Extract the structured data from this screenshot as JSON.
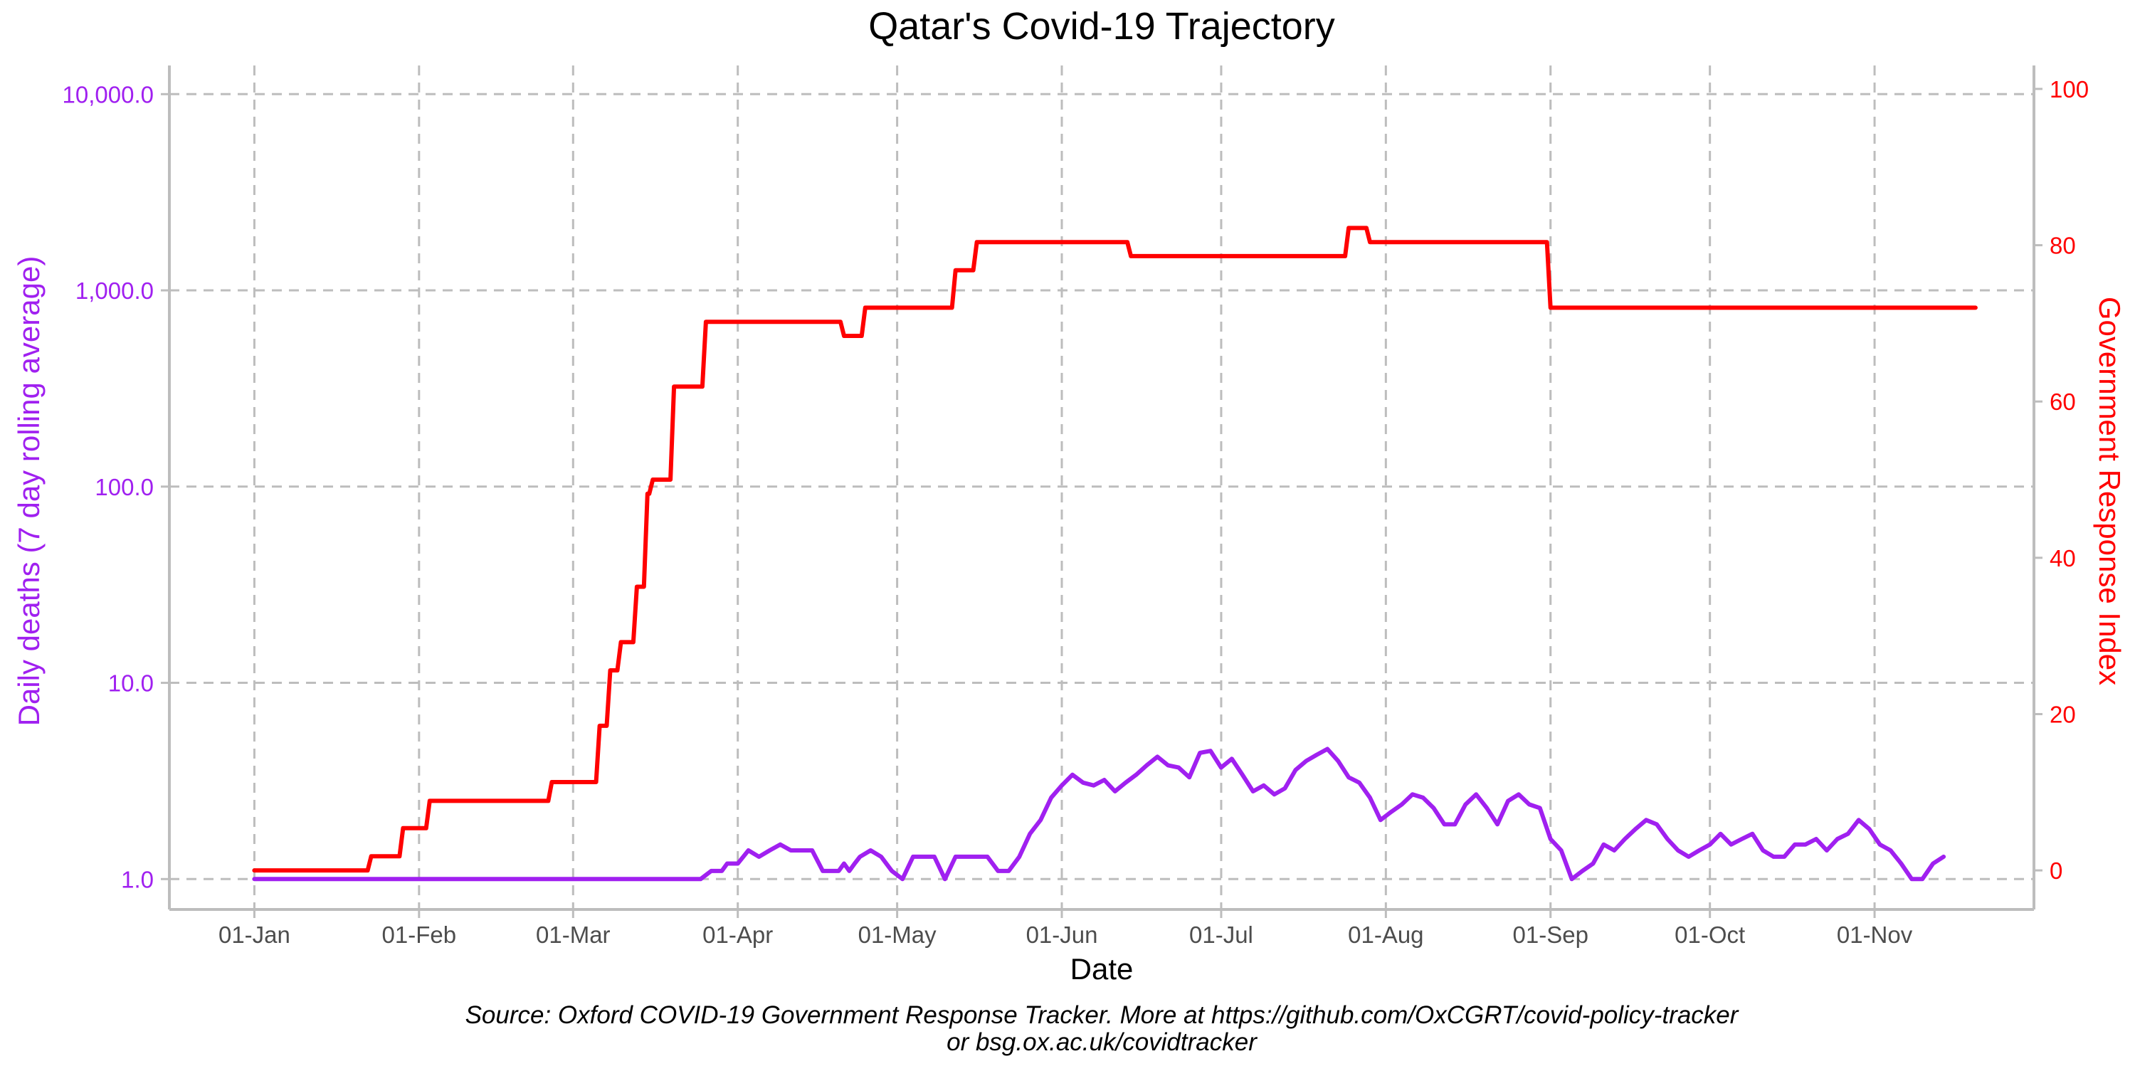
{
  "chart_data": {
    "type": "line",
    "title": "Qatar's Covid-19 Trajectory",
    "xlabel": "Date",
    "ylabel_left": "Daily deaths (7 day rolling average)",
    "ylabel_right": "Government Response Index",
    "caption_line1": "Source: Oxford COVID-19 Government Response Tracker. More at https://github.com/OxCGRT/covid-policy-tracker",
    "caption_line2": "or bsg.ox.ac.uk/covidtracker",
    "x_range": [
      "2019-12-16",
      "2020-12-01"
    ],
    "x_ticks": [
      {
        "date": "2020-01-01",
        "label": "01-Jan"
      },
      {
        "date": "2020-02-01",
        "label": "01-Feb"
      },
      {
        "date": "2020-03-01",
        "label": "01-Mar"
      },
      {
        "date": "2020-04-01",
        "label": "01-Apr"
      },
      {
        "date": "2020-05-01",
        "label": "01-May"
      },
      {
        "date": "2020-06-01",
        "label": "01-Jun"
      },
      {
        "date": "2020-07-01",
        "label": "01-Jul"
      },
      {
        "date": "2020-08-01",
        "label": "01-Aug"
      },
      {
        "date": "2020-09-01",
        "label": "01-Sep"
      },
      {
        "date": "2020-10-01",
        "label": "01-Oct"
      },
      {
        "date": "2020-11-01",
        "label": "01-Nov"
      }
    ],
    "y_left": {
      "scale": "log10",
      "range": [
        0.7,
        14000
      ],
      "ticks": [
        1,
        10,
        100,
        1000,
        10000
      ],
      "tick_labels": [
        "1.0",
        "10.0",
        "100.0",
        "1,000.0",
        "10,000.0"
      ],
      "color": "#A020F0"
    },
    "y_right": {
      "scale": "linear",
      "range": [
        -5,
        103
      ],
      "ticks": [
        0,
        20,
        40,
        60,
        80,
        100
      ],
      "tick_labels": [
        "0",
        "20",
        "40",
        "60",
        "80",
        "100"
      ],
      "color": "#FF0000"
    },
    "grid": "dashed major gridlines",
    "series": [
      {
        "name": "Daily deaths (7 day rolling average)",
        "axis": "left",
        "color": "#A020F0",
        "step": false,
        "points": [
          {
            "x": "2020-01-01",
            "y": 1.0
          },
          {
            "x": "2020-03-25",
            "y": 1.0
          },
          {
            "x": "2020-03-27",
            "y": 1.1
          },
          {
            "x": "2020-03-29",
            "y": 1.1
          },
          {
            "x": "2020-03-30",
            "y": 1.2
          },
          {
            "x": "2020-04-01",
            "y": 1.2
          },
          {
            "x": "2020-04-03",
            "y": 1.4
          },
          {
            "x": "2020-04-05",
            "y": 1.3
          },
          {
            "x": "2020-04-07",
            "y": 1.4
          },
          {
            "x": "2020-04-09",
            "y": 1.5
          },
          {
            "x": "2020-04-11",
            "y": 1.4
          },
          {
            "x": "2020-04-15",
            "y": 1.4
          },
          {
            "x": "2020-04-17",
            "y": 1.1
          },
          {
            "x": "2020-04-20",
            "y": 1.1
          },
          {
            "x": "2020-04-21",
            "y": 1.2
          },
          {
            "x": "2020-04-22",
            "y": 1.1
          },
          {
            "x": "2020-04-23",
            "y": 1.2
          },
          {
            "x": "2020-04-24",
            "y": 1.3
          },
          {
            "x": "2020-04-26",
            "y": 1.4
          },
          {
            "x": "2020-04-28",
            "y": 1.3
          },
          {
            "x": "2020-04-30",
            "y": 1.1
          },
          {
            "x": "2020-05-02",
            "y": 1.0
          },
          {
            "x": "2020-05-04",
            "y": 1.3
          },
          {
            "x": "2020-05-08",
            "y": 1.3
          },
          {
            "x": "2020-05-10",
            "y": 1.0
          },
          {
            "x": "2020-05-12",
            "y": 1.3
          },
          {
            "x": "2020-05-18",
            "y": 1.3
          },
          {
            "x": "2020-05-20",
            "y": 1.1
          },
          {
            "x": "2020-05-22",
            "y": 1.1
          },
          {
            "x": "2020-05-24",
            "y": 1.3
          },
          {
            "x": "2020-05-26",
            "y": 1.7
          },
          {
            "x": "2020-05-28",
            "y": 2.0
          },
          {
            "x": "2020-05-30",
            "y": 2.6
          },
          {
            "x": "2020-06-01",
            "y": 3.0
          },
          {
            "x": "2020-06-03",
            "y": 3.4
          },
          {
            "x": "2020-06-05",
            "y": 3.1
          },
          {
            "x": "2020-06-07",
            "y": 3.0
          },
          {
            "x": "2020-06-09",
            "y": 3.2
          },
          {
            "x": "2020-06-11",
            "y": 2.8
          },
          {
            "x": "2020-06-13",
            "y": 3.1
          },
          {
            "x": "2020-06-15",
            "y": 3.4
          },
          {
            "x": "2020-06-17",
            "y": 3.8
          },
          {
            "x": "2020-06-19",
            "y": 4.2
          },
          {
            "x": "2020-06-21",
            "y": 3.8
          },
          {
            "x": "2020-06-23",
            "y": 3.7
          },
          {
            "x": "2020-06-25",
            "y": 3.3
          },
          {
            "x": "2020-06-27",
            "y": 4.4
          },
          {
            "x": "2020-06-29",
            "y": 4.5
          },
          {
            "x": "2020-07-01",
            "y": 3.7
          },
          {
            "x": "2020-07-03",
            "y": 4.1
          },
          {
            "x": "2020-07-05",
            "y": 3.4
          },
          {
            "x": "2020-07-07",
            "y": 2.8
          },
          {
            "x": "2020-07-09",
            "y": 3.0
          },
          {
            "x": "2020-07-11",
            "y": 2.7
          },
          {
            "x": "2020-07-13",
            "y": 2.9
          },
          {
            "x": "2020-07-15",
            "y": 3.6
          },
          {
            "x": "2020-07-17",
            "y": 4.0
          },
          {
            "x": "2020-07-19",
            "y": 4.3
          },
          {
            "x": "2020-07-21",
            "y": 4.6
          },
          {
            "x": "2020-07-23",
            "y": 4.0
          },
          {
            "x": "2020-07-25",
            "y": 3.3
          },
          {
            "x": "2020-07-27",
            "y": 3.1
          },
          {
            "x": "2020-07-29",
            "y": 2.6
          },
          {
            "x": "2020-07-31",
            "y": 2.0
          },
          {
            "x": "2020-08-02",
            "y": 2.2
          },
          {
            "x": "2020-08-04",
            "y": 2.4
          },
          {
            "x": "2020-08-06",
            "y": 2.7
          },
          {
            "x": "2020-08-08",
            "y": 2.6
          },
          {
            "x": "2020-08-10",
            "y": 2.3
          },
          {
            "x": "2020-08-12",
            "y": 1.9
          },
          {
            "x": "2020-08-14",
            "y": 1.9
          },
          {
            "x": "2020-08-16",
            "y": 2.4
          },
          {
            "x": "2020-08-18",
            "y": 2.7
          },
          {
            "x": "2020-08-20",
            "y": 2.3
          },
          {
            "x": "2020-08-22",
            "y": 1.9
          },
          {
            "x": "2020-08-24",
            "y": 2.5
          },
          {
            "x": "2020-08-26",
            "y": 2.7
          },
          {
            "x": "2020-08-28",
            "y": 2.4
          },
          {
            "x": "2020-08-30",
            "y": 2.3
          },
          {
            "x": "2020-09-01",
            "y": 1.6
          },
          {
            "x": "2020-09-03",
            "y": 1.4
          },
          {
            "x": "2020-09-05",
            "y": 1.0
          },
          {
            "x": "2020-09-07",
            "y": 1.1
          },
          {
            "x": "2020-09-09",
            "y": 1.2
          },
          {
            "x": "2020-09-11",
            "y": 1.5
          },
          {
            "x": "2020-09-13",
            "y": 1.4
          },
          {
            "x": "2020-09-15",
            "y": 1.6
          },
          {
            "x": "2020-09-17",
            "y": 1.8
          },
          {
            "x": "2020-09-19",
            "y": 2.0
          },
          {
            "x": "2020-09-21",
            "y": 1.9
          },
          {
            "x": "2020-09-23",
            "y": 1.6
          },
          {
            "x": "2020-09-25",
            "y": 1.4
          },
          {
            "x": "2020-09-27",
            "y": 1.3
          },
          {
            "x": "2020-09-29",
            "y": 1.4
          },
          {
            "x": "2020-10-01",
            "y": 1.5
          },
          {
            "x": "2020-10-03",
            "y": 1.7
          },
          {
            "x": "2020-10-05",
            "y": 1.5
          },
          {
            "x": "2020-10-07",
            "y": 1.6
          },
          {
            "x": "2020-10-09",
            "y": 1.7
          },
          {
            "x": "2020-10-11",
            "y": 1.4
          },
          {
            "x": "2020-10-13",
            "y": 1.3
          },
          {
            "x": "2020-10-15",
            "y": 1.3
          },
          {
            "x": "2020-10-17",
            "y": 1.5
          },
          {
            "x": "2020-10-19",
            "y": 1.5
          },
          {
            "x": "2020-10-21",
            "y": 1.6
          },
          {
            "x": "2020-10-23",
            "y": 1.4
          },
          {
            "x": "2020-10-25",
            "y": 1.6
          },
          {
            "x": "2020-10-27",
            "y": 1.7
          },
          {
            "x": "2020-10-29",
            "y": 2.0
          },
          {
            "x": "2020-10-31",
            "y": 1.8
          },
          {
            "x": "2020-11-02",
            "y": 1.5
          },
          {
            "x": "2020-11-04",
            "y": 1.4
          },
          {
            "x": "2020-11-06",
            "y": 1.2
          },
          {
            "x": "2020-11-08",
            "y": 1.0
          },
          {
            "x": "2020-11-10",
            "y": 1.0
          },
          {
            "x": "2020-11-12",
            "y": 1.2
          },
          {
            "x": "2020-11-14",
            "y": 1.3
          }
        ]
      },
      {
        "name": "Government Response Index",
        "axis": "right",
        "color": "#FF0000",
        "step": true,
        "points": [
          {
            "x": "2020-01-01",
            "y": 0
          },
          {
            "x": "2020-01-23",
            "y": 1.8
          },
          {
            "x": "2020-01-29",
            "y": 5.4
          },
          {
            "x": "2020-02-03",
            "y": 8.9
          },
          {
            "x": "2020-02-26",
            "y": 11.3
          },
          {
            "x": "2020-03-06",
            "y": 18.5
          },
          {
            "x": "2020-03-08",
            "y": 25.6
          },
          {
            "x": "2020-03-10",
            "y": 29.2
          },
          {
            "x": "2020-03-13",
            "y": 36.3
          },
          {
            "x": "2020-03-15",
            "y": 48.2
          },
          {
            "x": "2020-03-16",
            "y": 50.0
          },
          {
            "x": "2020-03-20",
            "y": 61.9
          },
          {
            "x": "2020-03-26",
            "y": 70.2
          },
          {
            "x": "2020-04-21",
            "y": 68.4
          },
          {
            "x": "2020-04-25",
            "y": 72.0
          },
          {
            "x": "2020-05-12",
            "y": 76.8
          },
          {
            "x": "2020-05-16",
            "y": 80.4
          },
          {
            "x": "2020-06-14",
            "y": 78.6
          },
          {
            "x": "2020-07-25",
            "y": 82.2
          },
          {
            "x": "2020-07-29",
            "y": 80.4
          },
          {
            "x": "2020-09-01",
            "y": 72.0
          },
          {
            "x": "2020-11-20",
            "y": 72.0
          }
        ]
      }
    ]
  }
}
